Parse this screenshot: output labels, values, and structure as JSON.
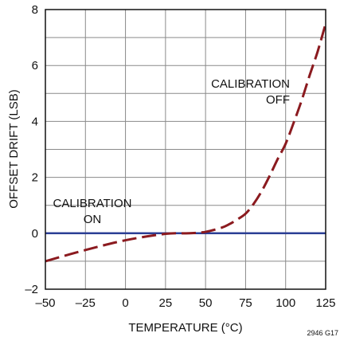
{
  "chart_data": {
    "type": "line",
    "title": "",
    "xlabel": "TEMPERATURE (°C)",
    "ylabel": "OFFSET DRIFT (LSB)",
    "xlim": [
      -50,
      125
    ],
    "ylim": [
      -2,
      8
    ],
    "xticks": [
      -50,
      -25,
      0,
      25,
      50,
      75,
      100,
      125
    ],
    "yticks": [
      -2,
      0,
      2,
      4,
      6,
      8
    ],
    "xtick_labels": [
      "–50",
      "–25",
      "0",
      "25",
      "50",
      "75",
      "100",
      "125"
    ],
    "ytick_labels": [
      "–2",
      "0",
      "2",
      "4",
      "6",
      "8"
    ],
    "grid": true,
    "legend": "none",
    "series": [
      {
        "name": "CALIBRATION ON",
        "color": "#2b3f95",
        "style": "solid",
        "x": [
          -50,
          125
        ],
        "y": [
          0,
          0
        ]
      },
      {
        "name": "CALIBRATION OFF",
        "color": "#8b1a1f",
        "style": "dashed",
        "x": [
          -50,
          -25,
          0,
          25,
          40,
          50,
          60,
          65,
          70,
          75,
          80,
          85,
          90,
          95,
          100,
          105,
          110,
          115,
          120,
          125
        ],
        "y": [
          -1.0,
          -0.6,
          -0.25,
          -0.02,
          0.0,
          0.05,
          0.2,
          0.33,
          0.5,
          0.7,
          1.05,
          1.5,
          2.05,
          2.65,
          3.2,
          3.95,
          4.75,
          5.65,
          6.5,
          7.5
        ]
      }
    ],
    "annotations": [
      {
        "lines": [
          "CALIBRATION",
          "ON"
        ],
        "series": "CALIBRATION ON"
      },
      {
        "lines": [
          "CALIBRATION",
          "OFF"
        ],
        "series": "CALIBRATION OFF"
      }
    ],
    "figure_id": "2946 G17"
  }
}
